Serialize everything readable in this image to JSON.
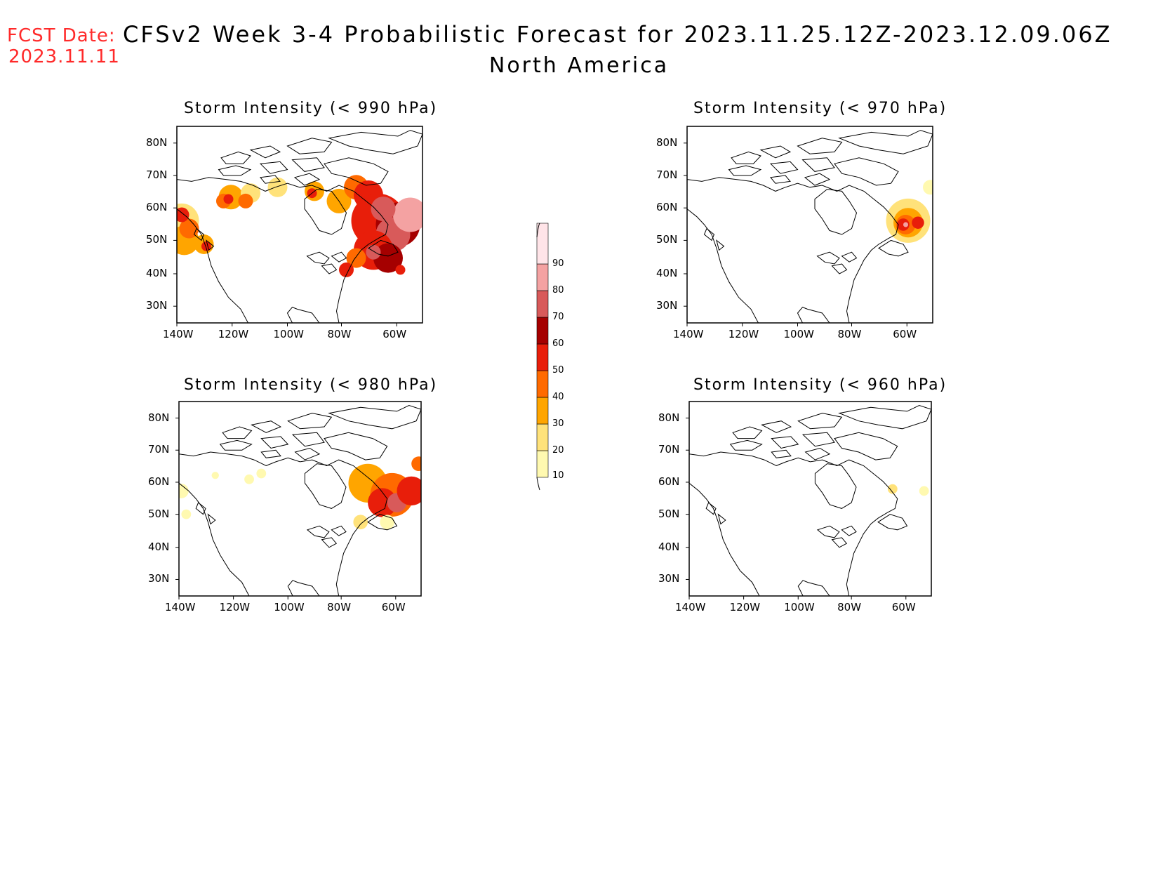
{
  "header": {
    "fcst_label": "FCST Date:",
    "fcst_date": "2023.11.11",
    "title": "CFSv2 Week 3-4 Probabilistic Forecast for 2023.11.25.12Z-2023.12.09.06Z",
    "region": "North America"
  },
  "axes": {
    "lat_ticks": [
      "80N",
      "70N",
      "60N",
      "50N",
      "40N",
      "30N"
    ],
    "lon_ticks": [
      "140W",
      "120W",
      "100W",
      "80W",
      "60W"
    ]
  },
  "panels": [
    {
      "id": "p990",
      "title": "Storm Intensity (< 990 hPa)"
    },
    {
      "id": "p970",
      "title": "Storm Intensity (< 970 hPa)"
    },
    {
      "id": "p980",
      "title": "Storm Intensity (< 980 hPa)"
    },
    {
      "id": "p960",
      "title": "Storm Intensity (< 960 hPa)"
    }
  ],
  "colorbar": {
    "levels": [
      "10",
      "20",
      "30",
      "40",
      "50",
      "60",
      "70",
      "80",
      "90"
    ],
    "colors": [
      "#fff9b0",
      "#ffe27a",
      "#ffa500",
      "#ff6a00",
      "#e81e0a",
      "#a50000",
      "#d85a5a",
      "#f4a2a2",
      "#ffe4e8"
    ]
  }
}
